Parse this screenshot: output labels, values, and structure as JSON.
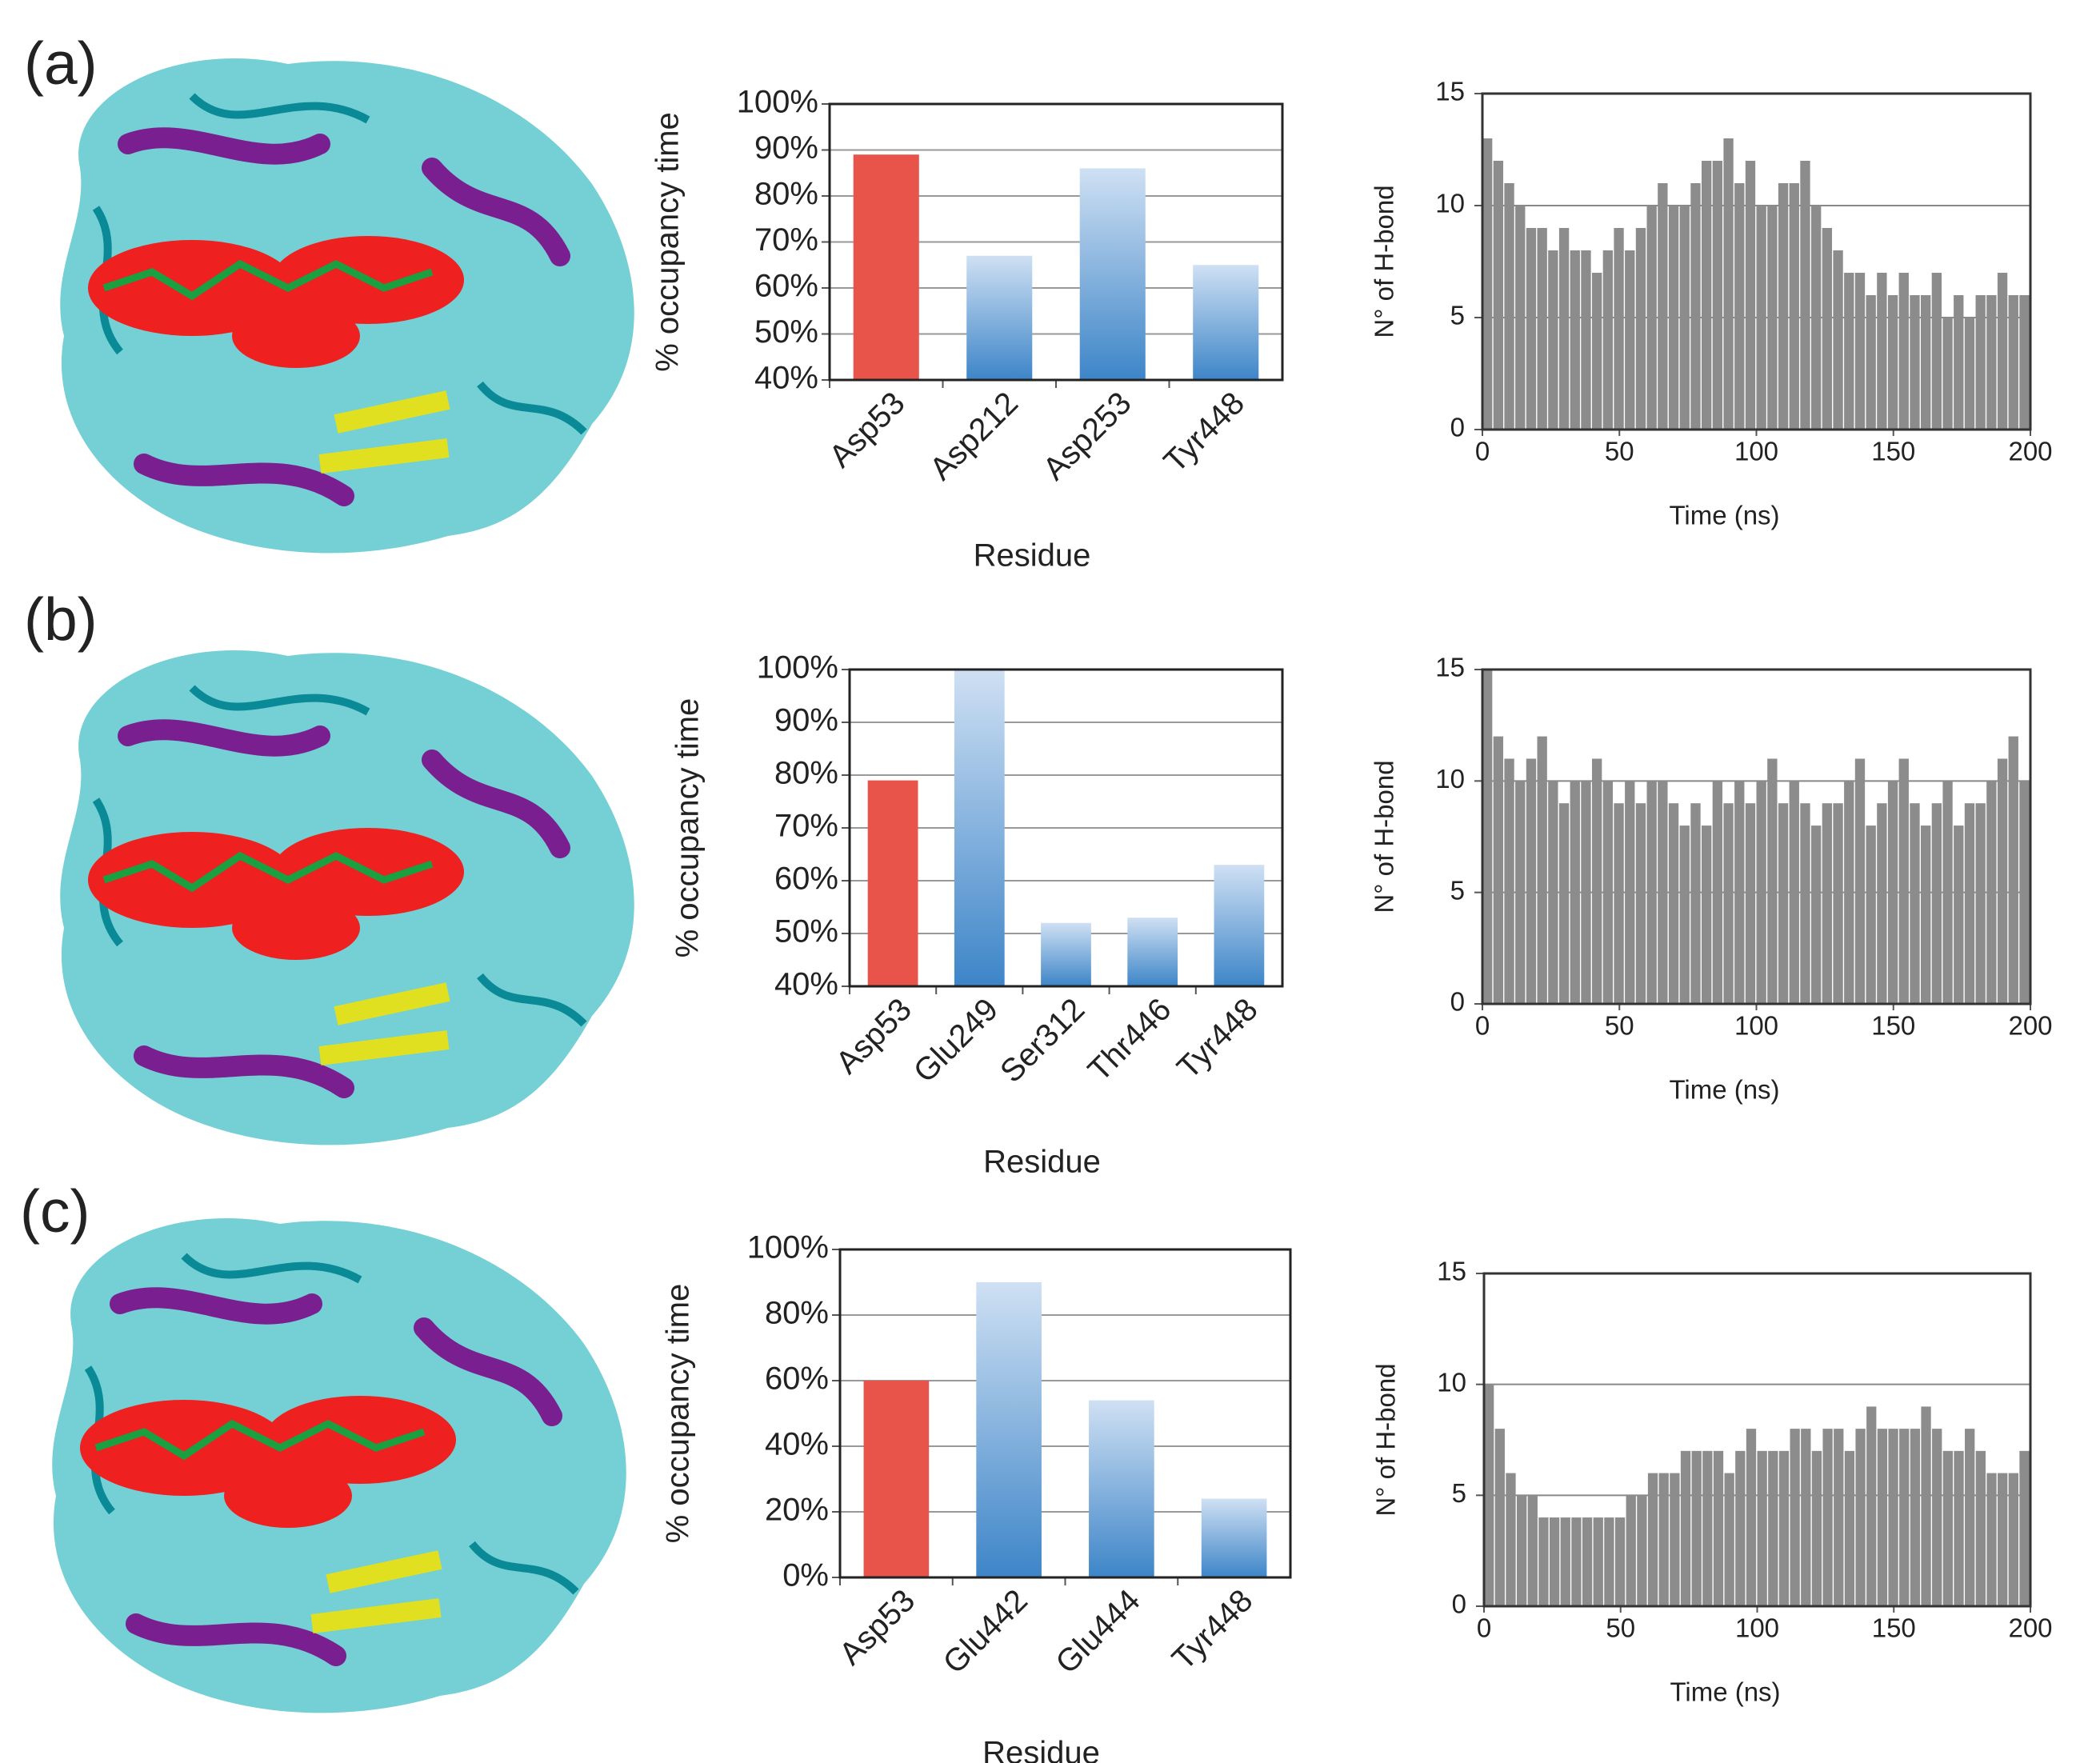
{
  "panels": [
    "(a)",
    "(b)",
    "(c)"
  ],
  "chart_data": [
    {
      "type": "bar",
      "ylabel": "% occupancy time",
      "xlabel": "Residue",
      "categories": [
        "Asp53",
        "Asp212",
        "Asp253",
        "Tyr448"
      ],
      "values": [
        89,
        67,
        86,
        65
      ],
      "colors": [
        "#e8534a",
        "#3d85c8",
        "#3d85c8",
        "#3d85c8"
      ],
      "ylim": [
        40,
        100
      ],
      "yticks": [
        {
          "value": 40,
          "label": "40%"
        },
        {
          "value": 50,
          "label": "50%"
        },
        {
          "value": 60,
          "label": "60%"
        },
        {
          "value": 70,
          "label": "70%"
        },
        {
          "value": 80,
          "label": "80%"
        },
        {
          "value": 90,
          "label": "90%"
        },
        {
          "value": 100,
          "label": "100%"
        }
      ],
      "grid": true
    },
    {
      "type": "bar",
      "ylabel": "N° of H-bond",
      "xlabel": "Time (ns)",
      "color": "#8c8c8c",
      "x": [
        0,
        4,
        8,
        12,
        16,
        20,
        24,
        28,
        32,
        36,
        40,
        44,
        48,
        52,
        56,
        60,
        64,
        68,
        72,
        76,
        80,
        84,
        88,
        92,
        96,
        100,
        104,
        108,
        112,
        116,
        120,
        124,
        128,
        132,
        136,
        140,
        144,
        148,
        152,
        156,
        160,
        164,
        168,
        172,
        176,
        180,
        184,
        188,
        192,
        196
      ],
      "values": [
        13,
        12,
        11,
        10,
        9,
        9,
        8,
        9,
        8,
        8,
        7,
        8,
        9,
        8,
        9,
        10,
        11,
        10,
        10,
        11,
        12,
        12,
        13,
        11,
        12,
        10,
        10,
        11,
        11,
        12,
        10,
        9,
        8,
        7,
        7,
        6,
        7,
        6,
        7,
        6,
        6,
        7,
        5,
        6,
        5,
        6,
        6,
        7,
        6,
        6
      ],
      "xlim": [
        0,
        200
      ],
      "xticks": [
        0,
        50,
        100,
        150,
        200
      ],
      "ylim": [
        0,
        15
      ],
      "yticks": [
        0,
        5,
        10,
        15
      ],
      "grid": true
    },
    {
      "type": "bar",
      "ylabel": "% occupancy time",
      "xlabel": "Residue",
      "categories": [
        "Asp53",
        "Glu249",
        "Ser312",
        "Thr446",
        "Tyr448"
      ],
      "values": [
        79,
        100,
        52,
        53,
        63
      ],
      "colors": [
        "#e8534a",
        "#3d85c8",
        "#3d85c8",
        "#3d85c8",
        "#3d85c8"
      ],
      "ylim": [
        40,
        100
      ],
      "yticks": [
        {
          "value": 40,
          "label": "40%"
        },
        {
          "value": 50,
          "label": "50%"
        },
        {
          "value": 60,
          "label": "60%"
        },
        {
          "value": 70,
          "label": "70%"
        },
        {
          "value": 80,
          "label": "80%"
        },
        {
          "value": 90,
          "label": "90%"
        },
        {
          "value": 100,
          "label": "100%"
        }
      ],
      "grid": true
    },
    {
      "type": "bar",
      "ylabel": "N° of H-bond",
      "xlabel": "Time (ns)",
      "color": "#8c8c8c",
      "x": [
        0,
        4,
        8,
        12,
        16,
        20,
        24,
        28,
        32,
        36,
        40,
        44,
        48,
        52,
        56,
        60,
        64,
        68,
        72,
        76,
        80,
        84,
        88,
        92,
        96,
        100,
        104,
        108,
        112,
        116,
        120,
        124,
        128,
        132,
        136,
        140,
        144,
        148,
        152,
        156,
        160,
        164,
        168,
        172,
        176,
        180,
        184,
        188,
        192,
        196
      ],
      "values": [
        15,
        12,
        11,
        10,
        11,
        12,
        10,
        9,
        10,
        10,
        11,
        10,
        9,
        10,
        9,
        10,
        10,
        9,
        8,
        9,
        8,
        10,
        9,
        10,
        9,
        10,
        11,
        9,
        10,
        9,
        8,
        9,
        9,
        10,
        11,
        8,
        9,
        10,
        11,
        9,
        8,
        9,
        10,
        8,
        9,
        9,
        10,
        11,
        12,
        10
      ],
      "xlim": [
        0,
        200
      ],
      "xticks": [
        0,
        50,
        100,
        150,
        200
      ],
      "ylim": [
        0,
        15
      ],
      "yticks": [
        0,
        5,
        10,
        15
      ],
      "grid": true
    },
    {
      "type": "bar",
      "ylabel": "% occupancy time",
      "xlabel": "Residue",
      "categories": [
        "Asp53",
        "Glu442",
        "Glu444",
        "Tyr448"
      ],
      "values": [
        60,
        90,
        54,
        24
      ],
      "colors": [
        "#e8534a",
        "#3d85c8",
        "#3d85c8",
        "#3d85c8"
      ],
      "ylim": [
        0,
        100
      ],
      "yticks": [
        {
          "value": 0,
          "label": "0%"
        },
        {
          "value": 20,
          "label": "20%"
        },
        {
          "value": 40,
          "label": "40%"
        },
        {
          "value": 60,
          "label": "60%"
        },
        {
          "value": 80,
          "label": "80%"
        },
        {
          "value": 100,
          "label": "100%"
        }
      ],
      "grid": true
    },
    {
      "type": "bar",
      "ylabel": "N° of H-bond",
      "xlabel": "Time (ns)",
      "color": "#8c8c8c",
      "x": [
        0,
        4,
        8,
        12,
        16,
        20,
        24,
        28,
        32,
        36,
        40,
        44,
        48,
        52,
        56,
        60,
        64,
        68,
        72,
        76,
        80,
        84,
        88,
        92,
        96,
        100,
        104,
        108,
        112,
        116,
        120,
        124,
        128,
        132,
        136,
        140,
        144,
        148,
        152,
        156,
        160,
        164,
        168,
        172,
        176,
        180,
        184,
        188,
        192,
        196
      ],
      "values": [
        10,
        8,
        6,
        5,
        5,
        4,
        4,
        4,
        4,
        4,
        4,
        4,
        4,
        5,
        5,
        6,
        6,
        6,
        7,
        7,
        7,
        7,
        6,
        7,
        8,
        7,
        7,
        7,
        8,
        8,
        7,
        8,
        8,
        7,
        8,
        9,
        8,
        8,
        8,
        8,
        9,
        8,
        7,
        7,
        8,
        7,
        6,
        6,
        6,
        7
      ],
      "xlim": [
        0,
        200
      ],
      "xticks": [
        0,
        50,
        100,
        150,
        200
      ],
      "ylim": [
        0,
        15
      ],
      "yticks": [
        0,
        5,
        10,
        15
      ],
      "grid": true
    }
  ]
}
